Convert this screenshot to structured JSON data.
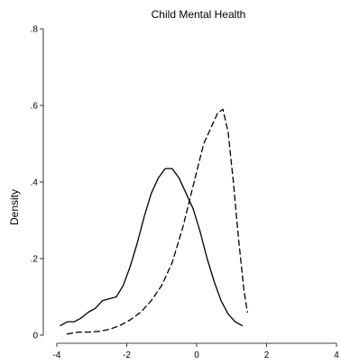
{
  "chart_data": {
    "type": "line",
    "title": "Child Mental Health",
    "xlabel": "",
    "ylabel": "Density",
    "xlim": [
      -4,
      4
    ],
    "ylim": [
      0,
      0.8
    ],
    "x_ticks": [
      -4,
      -2,
      0,
      2,
      4
    ],
    "x_tick_labels": [
      "-4",
      "-2",
      "0",
      "2",
      "4"
    ],
    "y_ticks": [
      0,
      0.2,
      0.4,
      0.6,
      0.8
    ],
    "y_tick_labels": [
      "0",
      ".2",
      ".4",
      ".6",
      ".8"
    ],
    "grid": false,
    "legend": "none",
    "series": [
      {
        "style": "solid",
        "color": "#000000",
        "x": [
          -3.9,
          -3.7,
          -3.5,
          -3.3,
          -3.1,
          -2.9,
          -2.7,
          -2.5,
          -2.3,
          -2.1,
          -1.9,
          -1.7,
          -1.5,
          -1.3,
          -1.1,
          -0.9,
          -0.7,
          -0.5,
          -0.3,
          -0.1,
          0.1,
          0.3,
          0.5,
          0.7,
          0.9,
          1.1,
          1.3
        ],
        "y": [
          0.025,
          0.035,
          0.035,
          0.045,
          0.06,
          0.07,
          0.09,
          0.095,
          0.1,
          0.13,
          0.18,
          0.24,
          0.31,
          0.37,
          0.41,
          0.435,
          0.435,
          0.41,
          0.37,
          0.33,
          0.27,
          0.2,
          0.14,
          0.09,
          0.055,
          0.035,
          0.025
        ]
      },
      {
        "style": "dashed",
        "color": "#000000",
        "x": [
          -3.7,
          -3.4,
          -3.1,
          -2.8,
          -2.5,
          -2.2,
          -1.9,
          -1.6,
          -1.3,
          -1.0,
          -0.7,
          -0.4,
          -0.1,
          0.2,
          0.5,
          0.6,
          0.75,
          0.9,
          1.05,
          1.2,
          1.35,
          1.45
        ],
        "y": [
          0.003,
          0.008,
          0.008,
          0.01,
          0.015,
          0.025,
          0.04,
          0.06,
          0.09,
          0.13,
          0.19,
          0.28,
          0.39,
          0.5,
          0.56,
          0.58,
          0.59,
          0.53,
          0.4,
          0.25,
          0.12,
          0.06
        ]
      }
    ]
  }
}
